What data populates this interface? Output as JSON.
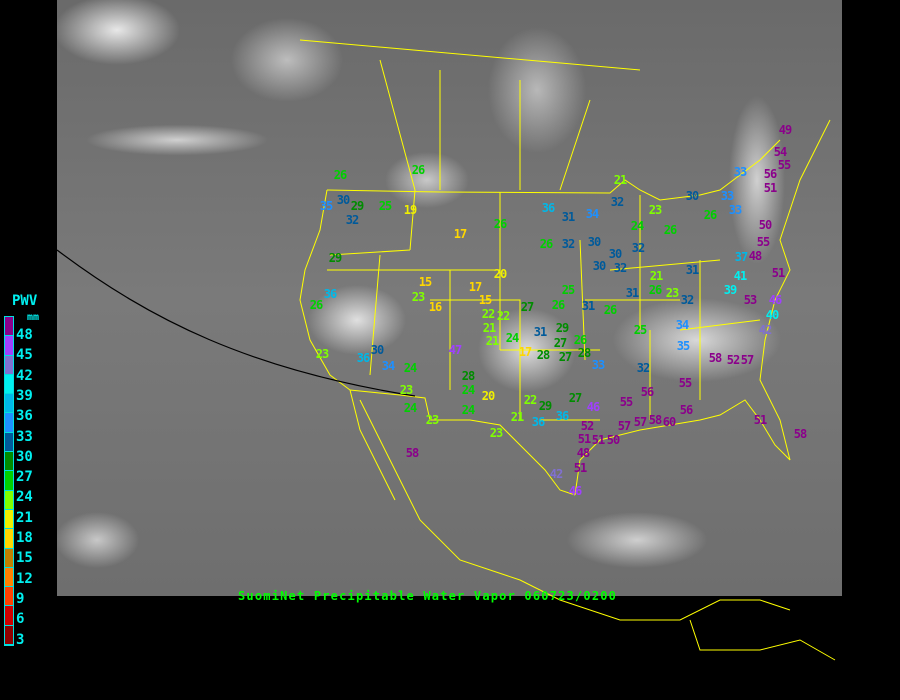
{
  "caption": "SuomiNet Precipitable Water Vapor 060723/0200",
  "legend": {
    "title": "PWV",
    "unit": "mm",
    "ticks": [
      "48",
      "45",
      "42",
      "39",
      "36",
      "33",
      "30",
      "27",
      "24",
      "21",
      "18",
      "15",
      "12",
      "9",
      "6",
      "3"
    ],
    "colors": [
      "#8b008b",
      "#a040ff",
      "#8070d0",
      "#00f0f0",
      "#00b8e8",
      "#1e90ff",
      "#005a9a",
      "#008c00",
      "#00d000",
      "#80ff00",
      "#f0f000",
      "#ffd700",
      "#c08000",
      "#ff8000",
      "#ff4000",
      "#d00000",
      "#900000"
    ]
  },
  "colors": {
    "borders": "#ffff00",
    "caption": "#00ff00",
    "legend_text": "#00f0f0",
    "terminator": "#000000"
  },
  "station_values": [
    49,
    54,
    55,
    56,
    51,
    33,
    33,
    33,
    26,
    30,
    21,
    23,
    32,
    24,
    26,
    36,
    31,
    34,
    26,
    26,
    32,
    30,
    30,
    32,
    30,
    32,
    21,
    31,
    50,
    55,
    48,
    37,
    51,
    41,
    39,
    53,
    46,
    40,
    42,
    26,
    31,
    23,
    32,
    31,
    26,
    25,
    26,
    27,
    20,
    17,
    19,
    25,
    29,
    30,
    35,
    32,
    26,
    26,
    29,
    15,
    23,
    16,
    17,
    15,
    22,
    21,
    22,
    21,
    24,
    31,
    29,
    27,
    26,
    27,
    28,
    33,
    28,
    17,
    25,
    34,
    35,
    58,
    52,
    57,
    32,
    55,
    56,
    55,
    46,
    27,
    22,
    29,
    36,
    36,
    21,
    58,
    60,
    57,
    57,
    56,
    52,
    51,
    51,
    50,
    51,
    42,
    46,
    48,
    51,
    58,
    58,
    47,
    28,
    24,
    20,
    24,
    23,
    23,
    24,
    23,
    34,
    30,
    24,
    23,
    36,
    26,
    36,
    31
  ]
}
